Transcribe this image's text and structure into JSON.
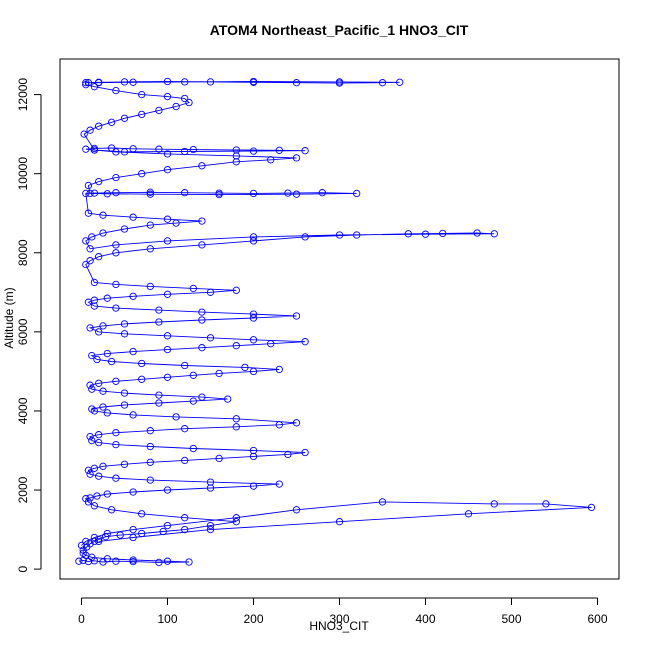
{
  "chart_data": {
    "type": "scatter",
    "title": "ATOM4 Northeast_Pacific_1 HNO3_CIT",
    "xlabel": "HNO3_CIT",
    "ylabel": "Altitude (m)",
    "xlim": [
      -25,
      625
    ],
    "ylim": [
      -250,
      12900
    ],
    "x_ticks": [
      0,
      100,
      200,
      300,
      400,
      500,
      600
    ],
    "y_ticks": [
      0,
      2000,
      4000,
      6000,
      8000,
      10000,
      12000
    ],
    "grid": false,
    "legend": "none",
    "marker": "open-circle",
    "connected": true,
    "color": "#0000ff",
    "series": [
      {
        "x": [
          -3,
          2,
          8,
          15,
          25,
          40,
          60,
          90,
          125,
          100,
          60,
          30,
          12,
          5,
          2,
          2,
          6,
          10,
          15,
          20,
          28,
          45,
          70,
          95,
          120,
          150,
          180,
          120,
          70,
          35,
          15,
          8,
          5,
          10,
          18,
          30,
          60,
          100,
          150,
          200,
          230,
          150,
          80,
          40,
          20,
          10,
          8,
          15,
          25,
          50,
          80,
          120,
          160,
          200,
          240,
          260,
          200,
          130,
          80,
          40,
          20,
          12,
          10,
          20,
          40,
          80,
          120,
          180,
          230,
          250,
          180,
          110,
          60,
          30,
          15,
          12,
          25,
          50,
          90,
          130,
          170,
          140,
          90,
          50,
          25,
          12,
          10,
          20,
          40,
          70,
          100,
          130,
          160,
          200,
          230,
          190,
          120,
          70,
          35,
          18,
          12,
          30,
          60,
          100,
          140,
          180,
          220,
          260,
          200,
          150,
          100,
          50,
          20,
          10,
          25,
          50,
          90,
          140,
          200,
          250,
          200,
          140,
          90,
          40,
          15,
          8,
          15,
          30,
          60,
          100,
          150,
          180,
          130,
          80,
          40,
          15,
          5,
          10,
          20,
          40,
          80,
          140,
          200,
          260,
          320,
          380,
          420,
          460,
          480,
          400,
          300,
          200,
          100,
          40,
          10,
          5,
          12,
          25,
          50,
          80,
          110,
          140,
          100,
          60,
          25,
          8,
          5,
          15,
          40,
          80,
          120,
          160,
          200,
          240,
          280,
          320,
          250,
          160,
          80,
          30,
          10,
          8,
          20,
          40,
          70,
          100,
          140,
          180,
          220,
          250,
          180,
          100,
          40,
          15,
          5,
          15,
          35,
          60,
          90,
          130,
          180,
          230,
          260,
          200,
          120,
          50,
          15,
          3,
          10,
          20,
          35,
          50,
          70,
          90,
          110,
          125,
          120,
          100,
          70,
          40,
          15,
          5,
          5,
          20,
          50,
          100,
          150,
          200,
          250,
          300,
          350,
          370,
          300,
          200,
          120,
          60,
          20,
          8
        ],
        "y": [
          200,
          220,
          190,
          210,
          180,
          200,
          190,
          170,
          180,
          200,
          230,
          260,
          300,
          350,
          400,
          480,
          560,
          640,
          700,
          750,
          820,
          860,
          900,
          950,
          1000,
          1100,
          1200,
          1300,
          1400,
          1500,
          1600,
          1700,
          1780,
          1800,
          1850,
          1900,
          1950,
          2000,
          2050,
          2100,
          2150,
          2200,
          2250,
          2300,
          2350,
          2400,
          2500,
          2550,
          2600,
          2650,
          2700,
          2750,
          2800,
          2850,
          2900,
          2950,
          3000,
          3050,
          3100,
          3150,
          3200,
          3250,
          3350,
          3400,
          3450,
          3500,
          3550,
          3600,
          3650,
          3700,
          3800,
          3850,
          3900,
          3950,
          4000,
          4050,
          4100,
          4150,
          4200,
          4250,
          4300,
          4350,
          4400,
          4450,
          4500,
          4550,
          4650,
          4700,
          4750,
          4800,
          4850,
          4900,
          4950,
          5000,
          5050,
          5100,
          5150,
          5200,
          5250,
          5300,
          5400,
          5450,
          5500,
          5550,
          5600,
          5650,
          5700,
          5750,
          5800,
          5850,
          5900,
          5950,
          6000,
          6100,
          6150,
          6200,
          6250,
          6300,
          6350,
          6400,
          6450,
          6500,
          6550,
          6600,
          6650,
          6750,
          6800,
          6850,
          6900,
          6950,
          7000,
          7050,
          7100,
          7150,
          7200,
          7250,
          7700,
          7800,
          7900,
          8000,
          8100,
          8200,
          8300,
          8400,
          8450,
          8480,
          8490,
          8500,
          8480,
          8470,
          8450,
          8400,
          8300,
          8200,
          8100,
          8300,
          8400,
          8500,
          8600,
          8700,
          8750,
          8800,
          8850,
          8900,
          8950,
          9000,
          9500,
          9510,
          9520,
          9530,
          9520,
          9510,
          9500,
          9510,
          9520,
          9500,
          9480,
          9470,
          9480,
          9490,
          9500,
          9700,
          9800,
          9900,
          10000,
          10100,
          10200,
          10300,
          10350,
          10400,
          10450,
          10500,
          10550,
          10600,
          10620,
          10640,
          10650,
          10630,
          10620,
          10610,
          10600,
          10590,
          10580,
          10570,
          10560,
          10550,
          10600,
          11000,
          11100,
          11200,
          11300,
          11400,
          11500,
          11600,
          11700,
          11800,
          11900,
          11950,
          12000,
          12100,
          12200,
          12250,
          12300,
          12310,
          12320,
          12330,
          12320,
          12310,
          12300,
          12290,
          12300,
          12310,
          12320,
          12330,
          12320,
          12310,
          12300,
          12300
        ]
      },
      {
        "x": [
          0,
          5,
          15,
          30,
          60,
          100,
          180,
          250,
          350,
          480,
          540,
          593,
          450,
          300,
          150,
          60,
          20
        ],
        "y": [
          600,
          700,
          800,
          900,
          1000,
          1100,
          1300,
          1500,
          1700,
          1650,
          1650,
          1560,
          1400,
          1200,
          1000,
          800,
          700
        ]
      }
    ]
  }
}
